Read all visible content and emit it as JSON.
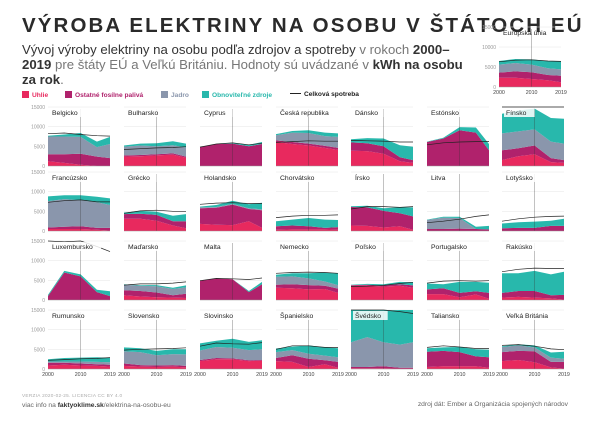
{
  "title": "VÝROBA ELEKTRINY NA OSOBU V ŠTÁTOCH EÚ",
  "subtitle": {
    "part1": "Vývoj výroby elektriny na osobu podľa zdrojov a spotreby",
    "part2": " v rokoch ",
    "part3": "2000–2019",
    "part4": " pre štáty EÚ a Veľkú Britániu. Hodnoty sú uvádzané v ",
    "part5": "kWh na osobu za rok",
    "part6": "."
  },
  "legend": [
    {
      "label": "Uhlie",
      "color": "#e8295e"
    },
    {
      "label": "Ostatné fosílne palivá",
      "color": "#b0226c"
    },
    {
      "label": "Jadro",
      "color": "#8a96ac"
    },
    {
      "label": "Obnoviteľné zdroje",
      "color": "#28b8ac"
    },
    {
      "label": "Celková spotreba",
      "color": "#222222"
    }
  ],
  "footer": {
    "version": "VERZIA 2020-02-25. LICENCIA CC BY 4.0",
    "more_prefix": "viac info na ",
    "more_link": "faktyoklime.sk",
    "more_suffix": "/elektrina-na-osobu-eu",
    "source": "zdroj dát: Ember a Organizácia spojených národov"
  },
  "chart_data": {
    "type": "area",
    "stacked": true,
    "x": [
      2000,
      2005,
      2010,
      2015,
      2019
    ],
    "x_ticks": [
      "2000",
      "2010",
      "2019"
    ],
    "y_ticks_main": [
      "0",
      "5000",
      "10000",
      "15000"
    ],
    "y_ticks_eu": [
      "0",
      "5000",
      "10000",
      "15000"
    ],
    "ylim": [
      0,
      15000
    ],
    "stack_order": [
      "Uhlie",
      "Ostatné fosílne palivá",
      "Jadro",
      "Obnoviteľné zdroje"
    ],
    "eu": {
      "name": "Európska únia",
      "coal": [
        2300,
        2300,
        2000,
        1700,
        1200
      ],
      "fossil": [
        1300,
        1600,
        1700,
        1300,
        1600
      ],
      "nuclear": [
        2000,
        2100,
        1900,
        1700,
        1600
      ],
      "renew": [
        900,
        1000,
        1300,
        1800,
        2100
      ],
      "consumption": [
        6300,
        6700,
        6800,
        6500,
        6400
      ]
    },
    "countries": [
      {
        "name": "Belgicko",
        "coal": [
          1200,
          800,
          300,
          0,
          0
        ],
        "fossil": [
          1800,
          2200,
          2800,
          2400,
          2000
        ],
        "nuclear": [
          4500,
          4500,
          4300,
          2400,
          3600
        ],
        "renew": [
          200,
          500,
          1000,
          1400,
          1800
        ],
        "consumption": [
          8200,
          8400,
          8000,
          7700,
          7600
        ]
      },
      {
        "name": "Bulharsko",
        "coal": [
          2400,
          2500,
          2700,
          2900,
          2100
        ],
        "fossil": [
          300,
          300,
          300,
          300,
          300
        ],
        "nuclear": [
          2200,
          2400,
          2000,
          2100,
          2300
        ],
        "renew": [
          300,
          500,
          800,
          1000,
          1000
        ],
        "consumption": [
          4200,
          4400,
          4600,
          4700,
          4900
        ]
      },
      {
        "name": "Cyprus",
        "coal": [
          0,
          0,
          0,
          0,
          0
        ],
        "fossil": [
          4800,
          5600,
          5700,
          5000,
          5600
        ],
        "nuclear": [
          0,
          0,
          0,
          0,
          0
        ],
        "renew": [
          0,
          0,
          200,
          400,
          500
        ],
        "consumption": [
          4800,
          5600,
          5900,
          5400,
          5800
        ]
      },
      {
        "name": "Česká republika",
        "coal": [
          6100,
          5600,
          5200,
          4600,
          4100
        ],
        "fossil": [
          400,
          500,
          500,
          500,
          500
        ],
        "nuclear": [
          1300,
          2400,
          2700,
          2500,
          2800
        ],
        "renew": [
          300,
          400,
          700,
          900,
          900
        ],
        "consumption": [
          6000,
          6200,
          6400,
          6300,
          6300
        ]
      },
      {
        "name": "Dánsko",
        "coal": [
          3900,
          3800,
          3100,
          1200,
          800
        ],
        "fossil": [
          2100,
          2000,
          1900,
          1000,
          700
        ],
        "nuclear": [
          0,
          0,
          0,
          0,
          0
        ],
        "renew": [
          800,
          1300,
          2000,
          3100,
          3400
        ],
        "consumption": [
          6500,
          6400,
          6300,
          6100,
          6100
        ]
      },
      {
        "name": "Estónsko",
        "coal": [
          0,
          0,
          0,
          0,
          0
        ],
        "fossil": [
          6100,
          7000,
          9100,
          8500,
          4000
        ],
        "nuclear": [
          0,
          0,
          0,
          0,
          0
        ],
        "renew": [
          100,
          200,
          800,
          1300,
          1600
        ],
        "consumption": [
          5400,
          5900,
          6100,
          6200,
          6200
        ]
      },
      {
        "name": "Fínsko",
        "coal": [
          1500,
          2500,
          3000,
          1000,
          800
        ],
        "fossil": [
          2500,
          2000,
          2200,
          1000,
          700
        ],
        "nuclear": [
          4300,
          4300,
          4100,
          4200,
          4200
        ],
        "renew": [
          5000,
          5300,
          5300,
          6000,
          6300
        ],
        "consumption": [
          15300,
          16000,
          16200,
          15500,
          15200
        ]
      },
      {
        "name": "Francúzsko",
        "coal": [
          500,
          500,
          500,
          300,
          100
        ],
        "fossil": [
          400,
          600,
          700,
          500,
          700
        ],
        "nuclear": [
          6700,
          7000,
          6600,
          6500,
          5800
        ],
        "renew": [
          1200,
          1000,
          1300,
          1400,
          1700
        ],
        "consumption": [
          7300,
          7700,
          7900,
          7400,
          7400
        ]
      },
      {
        "name": "Grécko",
        "coal": [
          3100,
          3100,
          2600,
          1400,
          700
        ],
        "fossil": [
          1200,
          1300,
          1500,
          1100,
          1800
        ],
        "nuclear": [
          0,
          0,
          0,
          0,
          0
        ],
        "renew": [
          400,
          700,
          800,
          1400,
          1800
        ],
        "consumption": [
          4500,
          5100,
          5300,
          5000,
          5000
        ]
      },
      {
        "name": "Holandsko",
        "coal": [
          1800,
          1600,
          1500,
          2500,
          800
        ],
        "fossil": [
          4000,
          4300,
          5200,
          3100,
          4500
        ],
        "nuclear": [
          200,
          200,
          200,
          200,
          200
        ],
        "renew": [
          200,
          500,
          800,
          1000,
          1700
        ],
        "consumption": [
          6800,
          7100,
          7200,
          7000,
          7000
        ]
      },
      {
        "name": "Chorvátsko",
        "coal": [
          300,
          400,
          400,
          400,
          300
        ],
        "fossil": [
          900,
          1000,
          800,
          400,
          700
        ],
        "nuclear": [
          0,
          0,
          0,
          0,
          0
        ],
        "renew": [
          1300,
          1500,
          2100,
          2100,
          1800
        ],
        "consumption": [
          3400,
          3800,
          4000,
          4000,
          4100
        ]
      },
      {
        "name": "Írsko",
        "coal": [
          1400,
          1300,
          900,
          1200,
          300
        ],
        "fossil": [
          4700,
          4700,
          4200,
          3300,
          3400
        ],
        "nuclear": [
          0,
          0,
          0,
          0,
          0
        ],
        "renew": [
          200,
          400,
          700,
          1500,
          2300
        ],
        "consumption": [
          5600,
          6200,
          6200,
          6000,
          6200
        ]
      },
      {
        "name": "Litva",
        "coal": [
          0,
          0,
          0,
          0,
          0
        ],
        "fossil": [
          500,
          500,
          600,
          500,
          400
        ],
        "nuclear": [
          2300,
          2900,
          2700,
          0,
          0
        ],
        "renew": [
          100,
          200,
          300,
          600,
          900
        ],
        "consumption": [
          2100,
          2500,
          3000,
          3700,
          4100
        ]
      },
      {
        "name": "Lotyšsko",
        "coal": [
          0,
          0,
          0,
          0,
          0
        ],
        "fossil": [
          700,
          800,
          800,
          1300,
          1300
        ],
        "nuclear": [
          0,
          0,
          0,
          0,
          0
        ],
        "renew": [
          1200,
          1400,
          1600,
          1300,
          1800
        ],
        "consumption": [
          2500,
          3100,
          3500,
          3700,
          3800
        ]
      },
      {
        "name": "Luxembursko",
        "coal": [
          0,
          0,
          0,
          0,
          0
        ],
        "fossil": [
          1000,
          7000,
          6000,
          2000,
          1000
        ],
        "nuclear": [
          0,
          0,
          0,
          0,
          0
        ],
        "renew": [
          300,
          400,
          500,
          600,
          1200
        ],
        "consumption": [
          15000,
          14800,
          15200,
          13600,
          12300
        ]
      },
      {
        "name": "Maďarsko",
        "coal": [
          1200,
          900,
          700,
          600,
          500
        ],
        "fossil": [
          1300,
          1400,
          1200,
          600,
          1100
        ],
        "nuclear": [
          1400,
          1300,
          1600,
          1600,
          1600
        ],
        "renew": [
          100,
          200,
          300,
          300,
          500
        ],
        "consumption": [
          3800,
          4100,
          4100,
          4300,
          4600
        ]
      },
      {
        "name": "Malta",
        "coal": [
          0,
          0,
          0,
          0,
          0
        ],
        "fossil": [
          4900,
          5500,
          5300,
          2000,
          4000
        ],
        "nuclear": [
          0,
          0,
          0,
          0,
          0
        ],
        "renew": [
          0,
          0,
          0,
          300,
          600
        ],
        "consumption": [
          4900,
          5500,
          5400,
          5200,
          5600
        ]
      },
      {
        "name": "Nemecko",
        "coal": [
          3100,
          3000,
          2700,
          2800,
          1800
        ],
        "fossil": [
          800,
          1000,
          1100,
          800,
          1100
        ],
        "nuclear": [
          2000,
          2000,
          1700,
          1100,
          900
        ],
        "renew": [
          500,
          800,
          1300,
          2300,
          2900
        ],
        "consumption": [
          6800,
          7000,
          7100,
          7000,
          6800
        ]
      },
      {
        "name": "Poľsko",
        "coal": [
          3600,
          3600,
          3400,
          3600,
          3100
        ],
        "fossil": [
          200,
          300,
          300,
          400,
          600
        ],
        "nuclear": [
          0,
          0,
          0,
          0,
          0
        ],
        "renew": [
          100,
          200,
          300,
          600,
          800
        ],
        "consumption": [
          3400,
          3500,
          3700,
          4200,
          4500
        ]
      },
      {
        "name": "Portugalsko",
        "coal": [
          1500,
          1500,
          700,
          1400,
          300
        ],
        "fossil": [
          1200,
          1500,
          1100,
          800,
          1500
        ],
        "nuclear": [
          0,
          0,
          0,
          0,
          0
        ],
        "renew": [
          1500,
          1000,
          2800,
          2400,
          2600
        ],
        "consumption": [
          4300,
          4800,
          4900,
          4800,
          4900
        ]
      },
      {
        "name": "Rakúsko",
        "coal": [
          600,
          800,
          600,
          400,
          100
        ],
        "fossil": [
          1200,
          1500,
          1700,
          800,
          1200
        ],
        "nuclear": [
          0,
          0,
          0,
          0,
          0
        ],
        "renew": [
          5000,
          4500,
          5100,
          5300,
          5900
        ],
        "consumption": [
          7200,
          7800,
          8100,
          8000,
          8000
        ]
      },
      {
        "name": "Rumunsko",
        "coal": [
          900,
          1100,
          900,
          800,
          600
        ],
        "fossil": [
          700,
          500,
          500,
          400,
          500
        ],
        "nuclear": [
          300,
          300,
          500,
          600,
          600
        ],
        "renew": [
          600,
          900,
          1000,
          1200,
          1100
        ],
        "consumption": [
          2200,
          2400,
          2600,
          2700,
          2900
        ]
      },
      {
        "name": "Slovensko",
        "coal": [
          800,
          600,
          500,
          600,
          400
        ],
        "fossil": [
          600,
          400,
          400,
          400,
          400
        ],
        "nuclear": [
          3100,
          3300,
          2600,
          2800,
          2900
        ],
        "renew": [
          1000,
          1000,
          1100,
          1200,
          1300
        ],
        "consumption": [
          4800,
          5000,
          5100,
          5200,
          5400
        ]
      },
      {
        "name": "Slovinsko",
        "coal": [
          2000,
          2500,
          2500,
          2000,
          2100
        ],
        "fossil": [
          300,
          300,
          200,
          200,
          200
        ],
        "nuclear": [
          2400,
          2800,
          2700,
          2600,
          2700
        ],
        "renew": [
          1800,
          1600,
          2300,
          2100,
          2300
        ],
        "consumption": [
          5800,
          6600,
          6400,
          6300,
          6700
        ]
      },
      {
        "name": "Španielsko",
        "coal": [
          2000,
          1800,
          500,
          1200,
          300
        ],
        "fossil": [
          800,
          1700,
          2100,
          1000,
          1500
        ],
        "nuclear": [
          1500,
          1300,
          1300,
          1200,
          1200
        ],
        "renew": [
          900,
          900,
          2100,
          2100,
          2300
        ],
        "consumption": [
          5000,
          5900,
          5900,
          5500,
          5500
        ]
      },
      {
        "name": "Švédsko",
        "coal": [
          200,
          200,
          200,
          100,
          100
        ],
        "fossil": [
          300,
          300,
          500,
          200,
          200
        ],
        "nuclear": [
          6300,
          7600,
          6100,
          5900,
          6500
        ],
        "renew": [
          8700,
          8400,
          8100,
          9900,
          9300
        ],
        "consumption": [
          15600,
          15700,
          15400,
          14600,
          14100
        ]
      },
      {
        "name": "Taliansko",
        "coal": [
          500,
          700,
          700,
          700,
          300
        ],
        "fossil": [
          3900,
          3900,
          3600,
          2500,
          2700
        ],
        "nuclear": [
          0,
          0,
          0,
          0,
          0
        ],
        "renew": [
          900,
          900,
          1300,
          1800,
          1900
        ],
        "consumption": [
          5500,
          5900,
          5600,
          5200,
          5200
        ]
      },
      {
        "name": "Veľká Británia",
        "coal": [
          2000,
          2300,
          1700,
          400,
          100
        ],
        "fossil": [
          2300,
          2300,
          2800,
          1400,
          1700
        ],
        "nuclear": [
          1300,
          1400,
          1000,
          1100,
          800
        ],
        "renew": [
          200,
          300,
          500,
          1300,
          1800
        ],
        "consumption": [
          6000,
          6200,
          5800,
          5100,
          4900
        ]
      }
    ]
  }
}
